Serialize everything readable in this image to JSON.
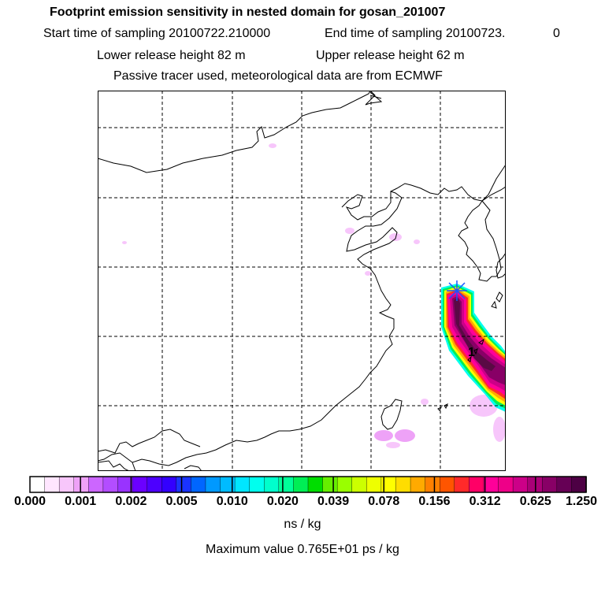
{
  "header": {
    "title": "Footprint emission sensitivity in nested domain for gosan_201007",
    "start_label": "Start time of sampling 20100722.210000",
    "end_label": "End time of sampling 20100723.",
    "end_trailing": "0",
    "lower_label": "Lower release height   82 m",
    "upper_label": "Upper release height   62 m",
    "tracer_line": "Passive tracer used, meteorological data are from ECMWF"
  },
  "map": {
    "release_point_label": "1",
    "plume_color_core": "#5a0a44",
    "plume_color_outer": "#ff00aa"
  },
  "colorbar": {
    "colors": [
      "#ffffff",
      "#ffe6ff",
      "#f7c6fb",
      "#eea2f7",
      "#cc66ff",
      "#b34dff",
      "#9933ff",
      "#6b00ff",
      "#4d00ff",
      "#3300ff",
      "#1a33ff",
      "#0066ff",
      "#0099ff",
      "#00bbff",
      "#00e6ff",
      "#00ffee",
      "#00ffcc",
      "#00ff99",
      "#00ee55",
      "#00dd00",
      "#66ee00",
      "#99ff00",
      "#ccff00",
      "#eeff00",
      "#ffff00",
      "#ffdd00",
      "#ffaa00",
      "#ff8000",
      "#ff5500",
      "#ff2a2a",
      "#ff0066",
      "#ff0099",
      "#ee0088",
      "#cc0088",
      "#aa0077",
      "#880066",
      "#660055",
      "#4d0044"
    ],
    "ticks": [
      "0.000",
      "0.001",
      "0.002",
      "0.005",
      "0.010",
      "0.020",
      "0.039",
      "0.078",
      "0.156",
      "0.312",
      "0.625",
      "1.250"
    ],
    "units": "ns / kg"
  },
  "footer": {
    "maximum_value": "Maximum value  0.765E+01 ps / kg"
  }
}
